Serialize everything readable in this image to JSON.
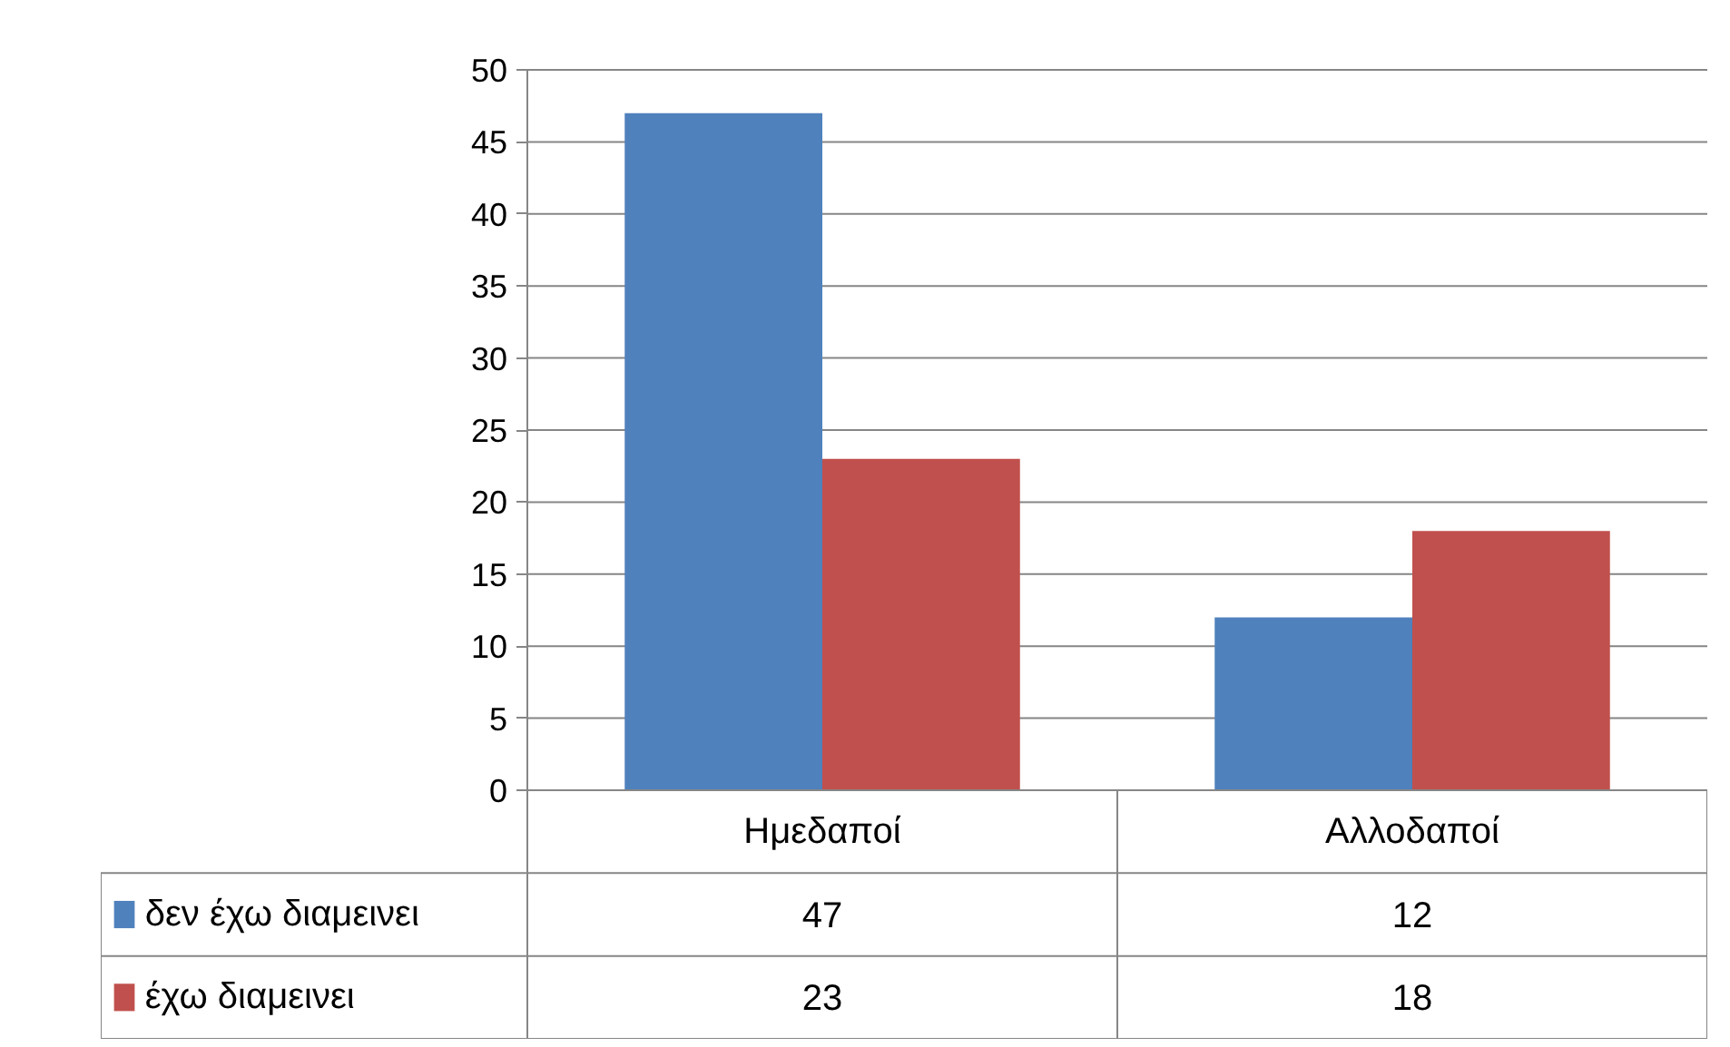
{
  "chart_data": {
    "type": "bar",
    "categories": [
      "Ημεδαποί",
      "Αλλοδαποί"
    ],
    "series": [
      {
        "name": "δεν έχω διαμεινει",
        "color": "#4f81bd",
        "values": [
          47,
          12
        ]
      },
      {
        "name": "έχω διαμεινει",
        "color": "#c0504d",
        "values": [
          23,
          18
        ]
      }
    ],
    "ylim": [
      0,
      50
    ],
    "yticks": [
      0,
      5,
      10,
      15,
      20,
      25,
      30,
      35,
      40,
      45,
      50
    ],
    "grid": "y",
    "legend": "bottom",
    "data_labels": true
  }
}
